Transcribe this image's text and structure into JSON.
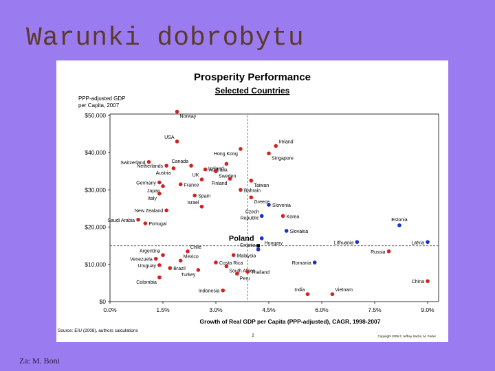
{
  "slide": {
    "title": "Warunki dobrobytu",
    "credit": "Za: M. Boni"
  },
  "colors": {
    "background": "#9b7bf0",
    "red": "#d42020",
    "blue": "#1a2fd0",
    "black": "#000000"
  },
  "chart_data": {
    "type": "scatter",
    "title": "Prosperity Performance",
    "subtitle": "Selected Countries",
    "ylabel_line1": "PPP-adjusted GDP",
    "ylabel_line2": "per Capita, 2007",
    "xlabel": "Growth of Real GDP per Capita (PPP-adjusted), CAGR, 1998-2007",
    "xlim": [
      0,
      9
    ],
    "ylim": [
      0,
      50000
    ],
    "x_ticks": [
      0,
      1.5,
      3,
      4.5,
      6,
      7.5,
      9
    ],
    "x_tick_labels": [
      "0.0%",
      "1.5%",
      "3.0%",
      "4.5%",
      "6.0%",
      "7.5%",
      "9.0%"
    ],
    "y_ticks": [
      0,
      10000,
      20000,
      30000,
      40000,
      50000
    ],
    "y_tick_labels": [
      "$0",
      "$10,000",
      "$20,000",
      "$30,000",
      "$40,000",
      "$50,000"
    ],
    "reference_lines": {
      "x": 3.9,
      "y": 15000
    },
    "grid": false,
    "source": "Source: EIU (2008), authors calculations",
    "copyright": "Copyright 2009 © Jeffrey Sachs, M. Porter",
    "page_number": "2",
    "points": [
      {
        "label": "Norway",
        "x": 1.9,
        "y": 51000,
        "color": "red",
        "pos": "br"
      },
      {
        "label": "USA",
        "x": 1.9,
        "y": 43000,
        "color": "red",
        "pos": "tl"
      },
      {
        "label": "Switzerland",
        "x": 1.1,
        "y": 37500,
        "color": "red",
        "pos": "l"
      },
      {
        "label": "Netherlands",
        "x": 1.6,
        "y": 36500,
        "color": "red",
        "pos": "l"
      },
      {
        "label": "Austria",
        "x": 1.8,
        "y": 35800,
        "color": "red",
        "pos": "bl"
      },
      {
        "label": "Canada",
        "x": 2.3,
        "y": 36500,
        "color": "red",
        "pos": "tl"
      },
      {
        "label": "Australia",
        "x": 2.7,
        "y": 35500,
        "color": "red",
        "pos": "r"
      },
      {
        "label": "Sweden",
        "x": 3.0,
        "y": 35000,
        "color": "red",
        "pos": "br"
      },
      {
        "label": "Iceland",
        "x": 3.3,
        "y": 37000,
        "color": "red",
        "pos": "bl"
      },
      {
        "label": "Hong Kong",
        "x": 3.7,
        "y": 41000,
        "color": "red",
        "pos": "bl"
      },
      {
        "label": "Ireland",
        "x": 4.7,
        "y": 41800,
        "color": "red",
        "pos": "tr"
      },
      {
        "label": "Singapore",
        "x": 4.5,
        "y": 39800,
        "color": "red",
        "pos": "br"
      },
      {
        "label": "UK",
        "x": 2.6,
        "y": 32800,
        "color": "red",
        "pos": "tl"
      },
      {
        "label": "Germany",
        "x": 1.4,
        "y": 32000,
        "color": "red",
        "pos": "l"
      },
      {
        "label": "Japan",
        "x": 1.5,
        "y": 31000,
        "color": "red",
        "pos": "bl"
      },
      {
        "label": "France",
        "x": 2.0,
        "y": 31500,
        "color": "red",
        "pos": "r"
      },
      {
        "label": "Finland",
        "x": 3.4,
        "y": 33000,
        "color": "red",
        "pos": "bl"
      },
      {
        "label": "Taiwan",
        "x": 4.0,
        "y": 32500,
        "color": "red",
        "pos": "br"
      },
      {
        "label": "Bahrain",
        "x": 3.7,
        "y": 30000,
        "color": "red",
        "pos": "r"
      },
      {
        "label": "Italy",
        "x": 1.4,
        "y": 29000,
        "color": "red",
        "pos": "bl"
      },
      {
        "label": "Spain",
        "x": 2.4,
        "y": 28500,
        "color": "red",
        "pos": "r"
      },
      {
        "label": "Greece",
        "x": 4.0,
        "y": 28000,
        "color": "red",
        "pos": "br"
      },
      {
        "label": "Israel",
        "x": 2.6,
        "y": 25500,
        "color": "red",
        "pos": "tl"
      },
      {
        "label": "Slovenia",
        "x": 4.5,
        "y": 26000,
        "color": "blue",
        "pos": "r"
      },
      {
        "label": "New Zealand",
        "x": 1.6,
        "y": 24500,
        "color": "red",
        "pos": "l"
      },
      {
        "label": "Czech Republic",
        "x": 4.3,
        "y": 23000,
        "color": "blue",
        "pos": "czech"
      },
      {
        "label": "Korea",
        "x": 4.9,
        "y": 23000,
        "color": "red",
        "pos": "r"
      },
      {
        "label": "Saudi Arabia",
        "x": 0.8,
        "y": 22000,
        "color": "red",
        "pos": "l"
      },
      {
        "label": "Portugal",
        "x": 1.0,
        "y": 21000,
        "color": "red",
        "pos": "r"
      },
      {
        "label": "Estonia",
        "x": 8.2,
        "y": 20500,
        "color": "blue",
        "pos": "t"
      },
      {
        "label": "Slovakia",
        "x": 5.0,
        "y": 19000,
        "color": "blue",
        "pos": "r"
      },
      {
        "label": "Hungary",
        "x": 4.3,
        "y": 17000,
        "color": "blue",
        "pos": "br"
      },
      {
        "label": "Poland",
        "x": 4.2,
        "y": 15000,
        "color": "black",
        "pos": "poland"
      },
      {
        "label": "Lithuania",
        "x": 7.0,
        "y": 16000,
        "color": "blue",
        "pos": "l"
      },
      {
        "label": "Latvia",
        "x": 9.0,
        "y": 16000,
        "color": "blue",
        "pos": "l"
      },
      {
        "label": "Russia",
        "x": 7.9,
        "y": 13500,
        "color": "red",
        "pos": "l"
      },
      {
        "label": "Chile",
        "x": 2.2,
        "y": 13500,
        "color": "red",
        "pos": "tr"
      },
      {
        "label": "Croatia",
        "x": 4.2,
        "y": 14000,
        "color": "blue",
        "pos": "tl"
      },
      {
        "label": "Argentina",
        "x": 1.5,
        "y": 12500,
        "color": "red",
        "pos": "tl"
      },
      {
        "label": "Malaysia",
        "x": 3.5,
        "y": 12500,
        "color": "red",
        "pos": "r"
      },
      {
        "label": "Venezuela",
        "x": 1.3,
        "y": 11500,
        "color": "red",
        "pos": "l"
      },
      {
        "label": "Mexico",
        "x": 2.0,
        "y": 11000,
        "color": "red",
        "pos": "tr"
      },
      {
        "label": "Costa Rica",
        "x": 3.0,
        "y": 10500,
        "color": "red",
        "pos": "r"
      },
      {
        "label": "Romania",
        "x": 5.8,
        "y": 10500,
        "color": "blue",
        "pos": "l"
      },
      {
        "label": "Uruguay",
        "x": 1.4,
        "y": 9800,
        "color": "red",
        "pos": "l"
      },
      {
        "label": "Brazil",
        "x": 1.7,
        "y": 9000,
        "color": "red",
        "pos": "r"
      },
      {
        "label": "South Africa",
        "x": 3.3,
        "y": 9500,
        "color": "red",
        "pos": "br"
      },
      {
        "label": "Turkey",
        "x": 2.5,
        "y": 8500,
        "color": "red",
        "pos": "bl"
      },
      {
        "label": "Thailand",
        "x": 3.9,
        "y": 8000,
        "color": "red",
        "pos": "r"
      },
      {
        "label": "Peru",
        "x": 3.6,
        "y": 7500,
        "color": "red",
        "pos": "br"
      },
      {
        "label": "Colombia",
        "x": 1.4,
        "y": 6500,
        "color": "red",
        "pos": "bl"
      },
      {
        "label": "China",
        "x": 9.0,
        "y": 5500,
        "color": "red",
        "pos": "l"
      },
      {
        "label": "Indonesia",
        "x": 3.2,
        "y": 3000,
        "color": "red",
        "pos": "l"
      },
      {
        "label": "India",
        "x": 5.6,
        "y": 2000,
        "color": "red",
        "pos": "tl"
      },
      {
        "label": "Vietnam",
        "x": 6.3,
        "y": 2000,
        "color": "red",
        "pos": "tr"
      }
    ]
  }
}
